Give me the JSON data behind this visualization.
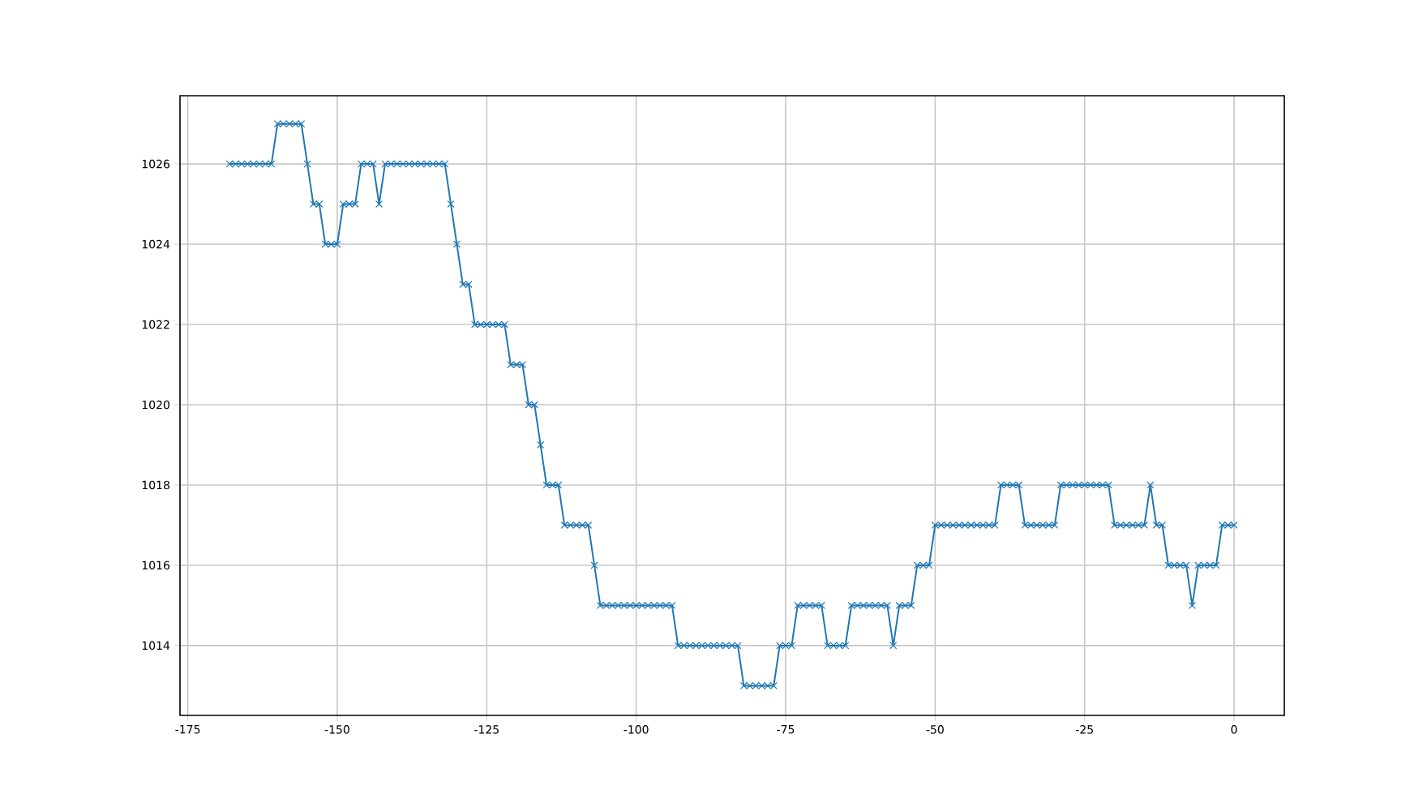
{
  "chart_data": {
    "type": "line",
    "x": [
      -168,
      -167,
      -166,
      -165,
      -164,
      -163,
      -162,
      -161,
      -160,
      -159,
      -158,
      -157,
      -156,
      -155,
      -154,
      -153,
      -152,
      -151,
      -150,
      -149,
      -148,
      -147,
      -146,
      -145,
      -144,
      -143,
      -142,
      -141,
      -140,
      -139,
      -138,
      -137,
      -136,
      -135,
      -134,
      -133,
      -132,
      -131,
      -130,
      -129,
      -128,
      -127,
      -126,
      -125,
      -124,
      -123,
      -122,
      -121,
      -120,
      -119,
      -118,
      -117,
      -116,
      -115,
      -114,
      -113,
      -112,
      -111,
      -110,
      -109,
      -108,
      -107,
      -106,
      -105,
      -104,
      -103,
      -102,
      -101,
      -100,
      -99,
      -98,
      -97,
      -96,
      -95,
      -94,
      -93,
      -92,
      -91,
      -90,
      -89,
      -88,
      -87,
      -86,
      -85,
      -84,
      -83,
      -82,
      -81,
      -80,
      -79,
      -78,
      -77,
      -76,
      -75,
      -74,
      -73,
      -72,
      -71,
      -70,
      -69,
      -68,
      -67,
      -66,
      -65,
      -64,
      -63,
      -62,
      -61,
      -60,
      -59,
      -58,
      -57,
      -56,
      -55,
      -54,
      -53,
      -52,
      -51,
      -50,
      -49,
      -48,
      -47,
      -46,
      -45,
      -44,
      -43,
      -42,
      -41,
      -40,
      -39,
      -38,
      -37,
      -36,
      -35,
      -34,
      -33,
      -32,
      -31,
      -30,
      -29,
      -28,
      -27,
      -26,
      -25,
      -24,
      -23,
      -22,
      -21,
      -20,
      -19,
      -18,
      -17,
      -16,
      -15,
      -14,
      -13,
      -12,
      -11,
      -10,
      -9,
      -8,
      -7,
      -6,
      -5,
      -4,
      -3,
      -2,
      -1,
      0
    ],
    "series": [
      {
        "color": "#1f77b4",
        "values": [
          1026,
          1026,
          1026,
          1026,
          1026,
          1026,
          1026,
          1026,
          1027,
          1027,
          1027,
          1027,
          1027,
          1026,
          1025,
          1025,
          1024,
          1024,
          1024,
          1025,
          1025,
          1025,
          1026,
          1026,
          1026,
          1025,
          1026,
          1026,
          1026,
          1026,
          1026,
          1026,
          1026,
          1026,
          1026,
          1026,
          1026,
          1025,
          1024,
          1023,
          1023,
          1022,
          1022,
          1022,
          1022,
          1022,
          1022,
          1021,
          1021,
          1021,
          1020,
          1020,
          1019,
          1018,
          1018,
          1018,
          1017,
          1017,
          1017,
          1017,
          1017,
          1016,
          1015,
          1015,
          1015,
          1015,
          1015,
          1015,
          1015,
          1015,
          1015,
          1015,
          1015,
          1015,
          1015,
          1014,
          1014,
          1014,
          1014,
          1014,
          1014,
          1014,
          1014,
          1014,
          1014,
          1014,
          1013,
          1013,
          1013,
          1013,
          1013,
          1013,
          1014,
          1014,
          1014,
          1015,
          1015,
          1015,
          1015,
          1015,
          1014,
          1014,
          1014,
          1014,
          1015,
          1015,
          1015,
          1015,
          1015,
          1015,
          1015,
          1014,
          1015,
          1015,
          1015,
          1016,
          1016,
          1016,
          1017,
          1017,
          1017,
          1017,
          1017,
          1017,
          1017,
          1017,
          1017,
          1017,
          1017,
          1018,
          1018,
          1018,
          1018,
          1017,
          1017,
          1017,
          1017,
          1017,
          1017,
          1018,
          1018,
          1018,
          1018,
          1018,
          1018,
          1018,
          1018,
          1018,
          1017,
          1017,
          1017,
          1017,
          1017,
          1017,
          1018,
          1017,
          1017,
          1016,
          1016,
          1016,
          1016,
          1015,
          1016,
          1016,
          1016,
          1016,
          1017,
          1017,
          1017
        ]
      }
    ],
    "xlim": [
      -176.3,
      8.4
    ],
    "ylim": [
      1012.26,
      1027.7
    ],
    "xticks": [
      -175,
      -150,
      -125,
      -100,
      -75,
      -50,
      -25,
      0
    ],
    "yticks": [
      1014,
      1016,
      1018,
      1020,
      1022,
      1024,
      1026
    ],
    "grid": true,
    "marker": "cross",
    "line_style": "solid"
  }
}
